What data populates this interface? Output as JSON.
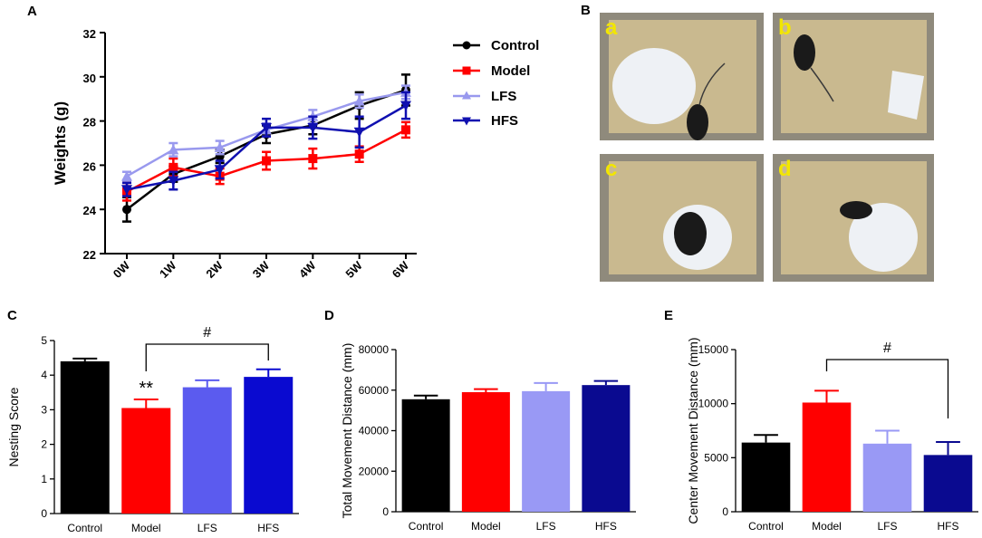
{
  "panel_labels": {
    "a": "A",
    "b": "B",
    "c": "C",
    "d": "D",
    "e": "E"
  },
  "photo_panel": {
    "sublabels": [
      "a",
      "b",
      "c",
      "d"
    ],
    "colors": {
      "bedding": "#c9b98f",
      "tray": "#8f8a7c",
      "mouse": "#1a1a1a",
      "nest": "#eef1f5"
    }
  },
  "chart_data": [
    {
      "id": "A",
      "type": "line",
      "title": "",
      "xlabel": "",
      "ylabel": "Weights (g)",
      "ylim": [
        22,
        32
      ],
      "yticks": [
        22,
        24,
        26,
        28,
        30,
        32
      ],
      "x": [
        "0W",
        "1W",
        "2W",
        "3W",
        "4W",
        "5W",
        "6W"
      ],
      "series": [
        {
          "name": "Control",
          "color": "#000000",
          "marker": "circle",
          "values": [
            24.0,
            25.6,
            26.4,
            27.4,
            27.8,
            28.7,
            29.4
          ],
          "errors": [
            0.55,
            0.35,
            0.3,
            0.4,
            0.4,
            0.6,
            0.7
          ]
        },
        {
          "name": "Model",
          "color": "#ff0000",
          "marker": "square",
          "values": [
            24.8,
            25.9,
            25.5,
            26.2,
            26.3,
            26.5,
            27.6
          ],
          "errors": [
            0.4,
            0.4,
            0.35,
            0.4,
            0.45,
            0.35,
            0.35
          ]
        },
        {
          "name": "LFS",
          "color": "#9999ee",
          "marker": "triangle-up",
          "values": [
            25.5,
            26.7,
            26.8,
            27.6,
            28.2,
            28.9,
            29.3
          ],
          "errors": [
            0.2,
            0.3,
            0.3,
            0.3,
            0.3,
            0.3,
            0.3
          ]
        },
        {
          "name": "HFS",
          "color": "#1010b0",
          "marker": "triangle-down",
          "values": [
            24.9,
            25.3,
            25.8,
            27.7,
            27.7,
            27.5,
            28.7
          ],
          "errors": [
            0.3,
            0.4,
            0.4,
            0.4,
            0.5,
            0.7,
            0.6
          ]
        }
      ]
    },
    {
      "id": "C",
      "type": "bar",
      "ylabel": "Nesting Score",
      "ylim": [
        0,
        5
      ],
      "yticks": [
        0,
        1,
        2,
        3,
        4,
        5
      ],
      "categories": [
        "Control",
        "Model",
        "LFS",
        "HFS"
      ],
      "values": [
        4.4,
        3.05,
        3.65,
        3.95
      ],
      "errors": [
        0.08,
        0.25,
        0.2,
        0.22
      ],
      "colors": [
        "#000000",
        "#ff0000",
        "#5b5bef",
        "#0a0ad0"
      ],
      "annotations": {
        "star": "**",
        "star_index": 1,
        "hash": "#",
        "bracket": [
          1,
          3
        ]
      }
    },
    {
      "id": "D",
      "type": "bar",
      "ylabel": "Total Movement Distance (mm)",
      "ylim": [
        0,
        80000
      ],
      "yticks": [
        0,
        20000,
        40000,
        60000,
        80000
      ],
      "categories": [
        "Control",
        "Model",
        "LFS",
        "HFS"
      ],
      "values": [
        55500,
        59000,
        59500,
        62500
      ],
      "errors": [
        1800,
        1500,
        4000,
        2000
      ],
      "colors": [
        "#000000",
        "#ff0000",
        "#9999f5",
        "#0a0a90"
      ]
    },
    {
      "id": "E",
      "type": "bar",
      "ylabel": "Center Movement Distance (mm)",
      "ylim": [
        0,
        15000
      ],
      "yticks": [
        0,
        5000,
        10000,
        15000
      ],
      "categories": [
        "Control",
        "Model",
        "LFS",
        "HFS"
      ],
      "values": [
        6400,
        10100,
        6300,
        5250
      ],
      "errors": [
        700,
        1100,
        1200,
        1200
      ],
      "colors": [
        "#000000",
        "#ff0000",
        "#9999f5",
        "#0a0a90"
      ],
      "annotations": {
        "hash": "#",
        "bracket": [
          1,
          3
        ]
      }
    }
  ]
}
